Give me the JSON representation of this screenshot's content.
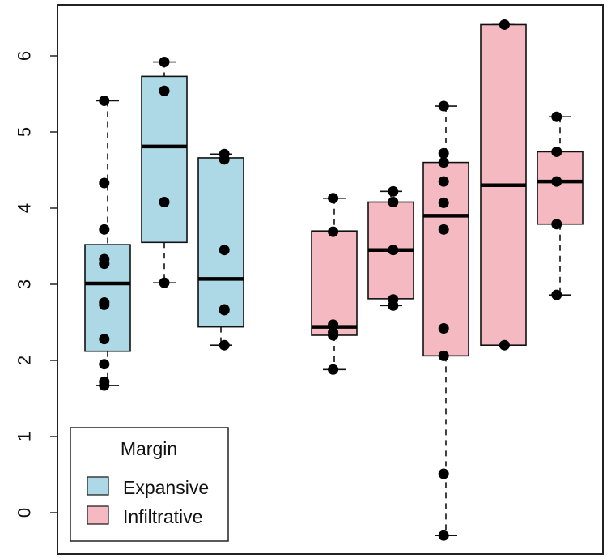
{
  "chart_data": {
    "type": "boxplot",
    "title": "",
    "xlabel": "",
    "ylabel": "",
    "ylim": [
      -0.45,
      6.75
    ],
    "yticks": [
      0,
      1,
      2,
      3,
      4,
      5,
      6
    ],
    "ytick_labels": [
      "0",
      "1",
      "2",
      "3",
      "4",
      "5",
      "6"
    ],
    "grid": false,
    "legend": {
      "title": "Margin",
      "placement": "bottom-left",
      "entries": [
        {
          "name": "Expansive",
          "color": "#add8e6"
        },
        {
          "name": "Infiltrative",
          "color": "#f4b9c1"
        }
      ]
    },
    "boxes": [
      {
        "group": "Expansive",
        "min": 1.67,
        "q1": 2.12,
        "median": 3.01,
        "q3": 3.52,
        "max": 5.41,
        "points": [
          1.67,
          1.72,
          1.95,
          2.28,
          2.73,
          2.76,
          3.27,
          3.33,
          3.72,
          4.33,
          5.41
        ]
      },
      {
        "group": "Expansive",
        "min": 3.02,
        "q1": 3.55,
        "median": 4.81,
        "q3": 5.73,
        "max": 5.92,
        "points": [
          3.02,
          4.08,
          5.54,
          5.92
        ]
      },
      {
        "group": "Expansive",
        "min": 2.2,
        "q1": 2.44,
        "median": 3.07,
        "q3": 4.66,
        "max": 4.71,
        "points": [
          2.2,
          2.66,
          2.67,
          3.45,
          4.64,
          4.71
        ]
      },
      {
        "group": "Infiltrative",
        "min": 1.88,
        "q1": 2.33,
        "median": 2.44,
        "q3": 3.7,
        "max": 4.13,
        "points": [
          1.88,
          2.33,
          2.37,
          2.47,
          3.69,
          4.13
        ]
      },
      {
        "group": "Infiltrative",
        "min": 2.72,
        "q1": 2.81,
        "median": 3.45,
        "q3": 4.08,
        "max": 4.22,
        "points": [
          2.72,
          2.8,
          3.45,
          4.08,
          4.22
        ]
      },
      {
        "group": "Infiltrative",
        "min": -0.3,
        "q1": 2.06,
        "median": 3.9,
        "q3": 4.6,
        "max": 5.34,
        "points": [
          -0.3,
          0.51,
          2.06,
          2.42,
          3.72,
          4.07,
          4.35,
          4.6,
          4.72,
          5.34
        ]
      },
      {
        "group": "Infiltrative",
        "min": 2.2,
        "q1": 2.2,
        "median": 4.3,
        "q3": 6.41,
        "max": 6.41,
        "points": [
          2.2,
          6.41
        ]
      },
      {
        "group": "Infiltrative",
        "min": 2.86,
        "q1": 3.79,
        "median": 4.35,
        "q3": 4.74,
        "max": 5.2,
        "points": [
          2.86,
          3.79,
          4.35,
          4.74,
          5.2
        ]
      }
    ]
  }
}
